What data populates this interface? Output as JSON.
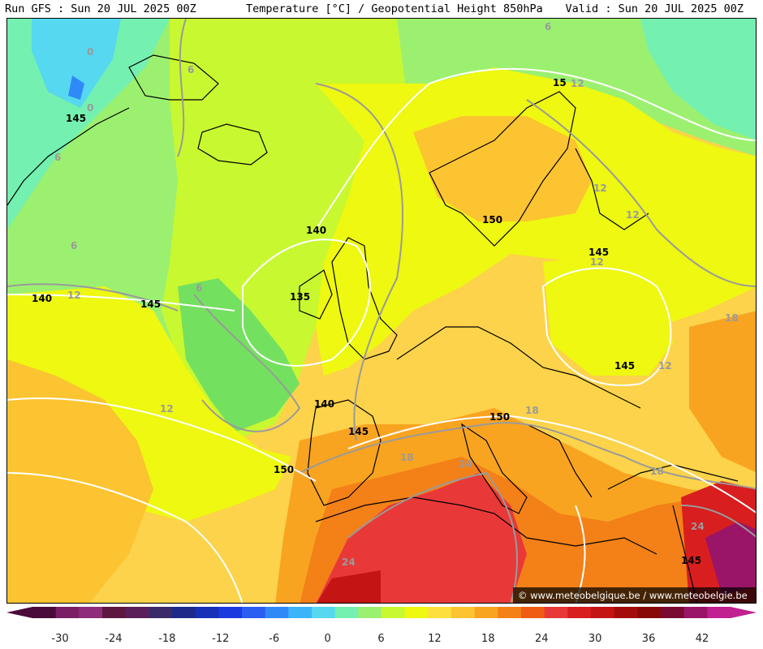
{
  "header": {
    "left": "Run GFS : Sun 20 JUL 2025 00Z",
    "center": "Temperature [°C] / Geopotential Height 850hPa",
    "right": "Valid : Sun 20 JUL 2025 00Z"
  },
  "credit": "© www.meteobelgique.be / www.meteobelgie.be",
  "height_labels": [
    "145",
    "15",
    "140",
    "135",
    "145",
    "150",
    "145",
    "145",
    "140",
    "145",
    "150",
    "150",
    "140",
    "145"
  ],
  "temp_labels": [
    "6",
    "0",
    "0",
    "6",
    "6",
    "12",
    "6",
    "12",
    "12",
    "12",
    "6",
    "12",
    "18",
    "12",
    "18",
    "12",
    "18",
    "24",
    "18",
    "24",
    "24"
  ],
  "colorbar": {
    "ticks": [
      "-30",
      "-24",
      "-18",
      "-12",
      "-6",
      "0",
      "6",
      "12",
      "18",
      "24",
      "30",
      "36",
      "42"
    ],
    "colors": [
      "#4a0a3a",
      "#7a1f66",
      "#8f2d7a",
      "#5e1740",
      "#5a1f5a",
      "#3a2a6a",
      "#1e2a8a",
      "#1630b8",
      "#1a3ae0",
      "#2a5ef2",
      "#2f8af8",
      "#3cb4f8",
      "#56d8f0",
      "#74f0b0",
      "#9cf070",
      "#c8f830",
      "#eef810",
      "#fde040",
      "#fcc430",
      "#f8a420",
      "#f48018",
      "#f05c14",
      "#e83838",
      "#d81e1e",
      "#c41414",
      "#a40c0c",
      "#880808",
      "#7a0a34",
      "#9a1468",
      "#c02090"
    ]
  }
}
